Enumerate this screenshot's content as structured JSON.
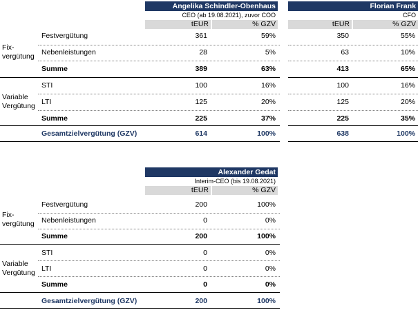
{
  "table1": {
    "persons": [
      {
        "name": "Angelika Schindler-Obenhaus",
        "role": "CEO (ab 19.08.2021), zuvor COO",
        "col_teur": "tEUR",
        "col_pct": "% GZV",
        "values": [
          [
            "361",
            "59%"
          ],
          [
            "28",
            "5%"
          ],
          [
            "389",
            "63%"
          ],
          [
            "100",
            "16%"
          ],
          [
            "125",
            "20%"
          ],
          [
            "225",
            "37%"
          ],
          [
            "614",
            "100%"
          ]
        ]
      },
      {
        "name": "Florian Frank",
        "role": "CFO",
        "col_teur": "tEUR",
        "col_pct": "% GZV",
        "values": [
          [
            "350",
            "55%"
          ],
          [
            "63",
            "10%"
          ],
          [
            "413",
            "65%"
          ],
          [
            "100",
            "16%"
          ],
          [
            "125",
            "20%"
          ],
          [
            "225",
            "35%"
          ],
          [
            "638",
            "100%"
          ]
        ]
      }
    ],
    "group_fix": "Fix-\nvergütung",
    "group_var": "Variable\nVergütung",
    "rows": [
      "Festvergütung",
      "Nebenleistungen",
      "Summe",
      "STI",
      "LTI",
      "Summe",
      "Gesamtzielvergütung (GZV)"
    ]
  },
  "table2": {
    "persons": [
      {
        "name": "Alexander Gedat",
        "role": "Interim-CEO (bis 19.08.2021)",
        "col_teur": "tEUR",
        "col_pct": "% GZV",
        "values": [
          [
            "200",
            "100%"
          ],
          [
            "0",
            "0%"
          ],
          [
            "200",
            "100%"
          ],
          [
            "0",
            "0%"
          ],
          [
            "0",
            "0%"
          ],
          [
            "0",
            "0%"
          ],
          [
            "200",
            "100%"
          ]
        ]
      }
    ],
    "group_fix": "Fix-\nvergütung",
    "group_var": "Variable\nVergütung",
    "rows": [
      "Festvergütung",
      "Nebenleistungen",
      "Summe",
      "STI",
      "LTI",
      "Summe",
      "Gesamtzielvergütung (GZV)"
    ]
  },
  "colors": {
    "header_bg": "#1f3864",
    "col_header_bg": "#d9d9d9",
    "total_text": "#1f3864"
  }
}
